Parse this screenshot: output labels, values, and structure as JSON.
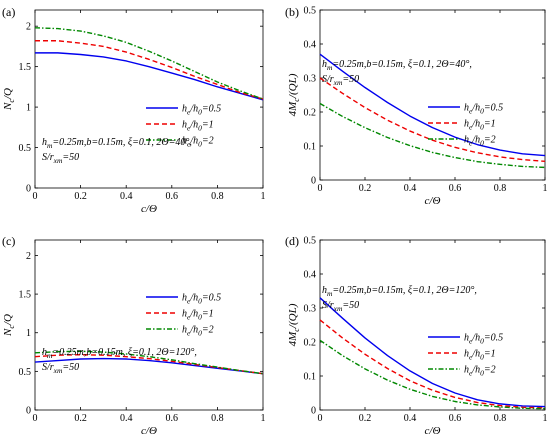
{
  "chart_data": [
    {
      "type": "line",
      "panel_label": "(a)",
      "xlabel": "c/Θ",
      "ylabel": "N_c/Q",
      "xlim": [
        0,
        1
      ],
      "ylim": [
        0,
        2.2
      ],
      "xticks": [
        0,
        0.2,
        0.4,
        0.6,
        0.8,
        1
      ],
      "xtick_labels": [
        "0",
        "0.2",
        "0.4",
        "0.6",
        "0.8",
        "1"
      ],
      "yticks": [
        0,
        0.5,
        1,
        1.5,
        2
      ],
      "ytick_labels": [
        "0",
        "0.5",
        "1",
        "1.5",
        "2"
      ],
      "annotation": [
        "h_m=0.25m,b=0.15m, ξ=0.1, 2Θ=40°,",
        "S/r_xm=50"
      ],
      "x": [
        0,
        0.1,
        0.2,
        0.3,
        0.4,
        0.5,
        0.6,
        0.7,
        0.8,
        0.9,
        1.0
      ],
      "series": [
        {
          "name": "h_e/h_0=0.5",
          "color": "#0000ee",
          "dash": "solid",
          "values": [
            1.67,
            1.67,
            1.65,
            1.62,
            1.57,
            1.5,
            1.42,
            1.34,
            1.25,
            1.17,
            1.09
          ]
        },
        {
          "name": "h_e/h_0=1",
          "color": "#ee0000",
          "dash": "dashed",
          "values": [
            1.82,
            1.82,
            1.79,
            1.75,
            1.68,
            1.59,
            1.49,
            1.38,
            1.28,
            1.18,
            1.1
          ]
        },
        {
          "name": "h_e/h_0=2",
          "color": "#008800",
          "dash": "dashdot",
          "values": [
            1.98,
            1.97,
            1.94,
            1.88,
            1.8,
            1.69,
            1.57,
            1.44,
            1.31,
            1.2,
            1.1
          ]
        }
      ]
    },
    {
      "type": "line",
      "panel_label": "(b)",
      "xlabel": "c/Θ",
      "ylabel": "4M_c/(QL)",
      "xlim": [
        0,
        1
      ],
      "ylim": [
        0,
        0.5
      ],
      "xticks": [
        0,
        0.2,
        0.4,
        0.6,
        0.8,
        1
      ],
      "xtick_labels": [
        "0",
        "0.2",
        "0.4",
        "0.6",
        "0.8",
        "1"
      ],
      "yticks": [
        0,
        0.1,
        0.2,
        0.3,
        0.4,
        0.5
      ],
      "ytick_labels": [
        "0",
        "0.1",
        "0.2",
        "0.3",
        "0.4",
        "0.5"
      ],
      "annotation": [
        "h_m=0.25m,b=0.15m, ξ=0.1, 2Θ=40°,",
        "S/r_xm=50"
      ],
      "x": [
        0,
        0.1,
        0.2,
        0.3,
        0.4,
        0.5,
        0.6,
        0.7,
        0.8,
        0.9,
        1.0
      ],
      "series": [
        {
          "name": "h_e/h_0=0.5",
          "color": "#0000ee",
          "dash": "solid",
          "values": [
            0.37,
            0.32,
            0.272,
            0.228,
            0.188,
            0.154,
            0.126,
            0.104,
            0.088,
            0.077,
            0.072
          ]
        },
        {
          "name": "h_e/h_0=1",
          "color": "#ee0000",
          "dash": "dashed",
          "values": [
            0.3,
            0.255,
            0.213,
            0.176,
            0.144,
            0.117,
            0.096,
            0.08,
            0.068,
            0.06,
            0.055
          ]
        },
        {
          "name": "h_e/h_0=2",
          "color": "#008800",
          "dash": "dashdot",
          "values": [
            0.225,
            0.187,
            0.154,
            0.125,
            0.101,
            0.081,
            0.066,
            0.054,
            0.046,
            0.04,
            0.037
          ]
        }
      ]
    },
    {
      "type": "line",
      "panel_label": "(c)",
      "xlabel": "c/Θ",
      "ylabel": "N_c/Q",
      "xlim": [
        0,
        1
      ],
      "ylim": [
        0,
        2.2
      ],
      "xticks": [
        0,
        0.2,
        0.4,
        0.6,
        0.8,
        1
      ],
      "xtick_labels": [
        "0",
        "0.2",
        "0.4",
        "0.6",
        "0.8",
        "1"
      ],
      "yticks": [
        0,
        0.5,
        1,
        1.5,
        2
      ],
      "ytick_labels": [
        "0",
        "0.5",
        "1",
        "1.5",
        "2"
      ],
      "annotation": [
        "h_m=0.25m,b=0.15m, ξ=0.1, 2Θ=120°,",
        "S/r_xm=50"
      ],
      "x": [
        0,
        0.1,
        0.2,
        0.3,
        0.4,
        0.5,
        0.6,
        0.7,
        0.8,
        0.9,
        1.0
      ],
      "series": [
        {
          "name": "h_e/h_0=0.5",
          "color": "#0000ee",
          "dash": "solid",
          "values": [
            0.62,
            0.64,
            0.66,
            0.665,
            0.66,
            0.64,
            0.61,
            0.575,
            0.54,
            0.505,
            0.47
          ]
        },
        {
          "name": "h_e/h_0=1",
          "color": "#ee0000",
          "dash": "dashed",
          "values": [
            0.69,
            0.71,
            0.715,
            0.71,
            0.69,
            0.665,
            0.63,
            0.59,
            0.55,
            0.51,
            0.47
          ]
        },
        {
          "name": "h_e/h_0=2",
          "color": "#008800",
          "dash": "dashdot",
          "values": [
            0.74,
            0.755,
            0.76,
            0.75,
            0.725,
            0.69,
            0.65,
            0.6,
            0.555,
            0.51,
            0.47
          ]
        }
      ]
    },
    {
      "type": "line",
      "panel_label": "(d)",
      "xlabel": "c/Θ",
      "ylabel": "4M_c/(QL)",
      "xlim": [
        0,
        1
      ],
      "ylim": [
        0,
        0.5
      ],
      "xticks": [
        0,
        0.2,
        0.4,
        0.6,
        0.8,
        1
      ],
      "xtick_labels": [
        "0",
        "0.2",
        "0.4",
        "0.6",
        "0.8",
        "1"
      ],
      "yticks": [
        0,
        0.1,
        0.2,
        0.3,
        0.4,
        0.5
      ],
      "ytick_labels": [
        "0",
        "0.1",
        "0.2",
        "0.3",
        "0.4",
        "0.5"
      ],
      "annotation": [
        "h_m=0.25m,b=0.15m, ξ=0.1, 2Θ=120°,",
        "S/r_xm=50"
      ],
      "x": [
        0,
        0.1,
        0.2,
        0.3,
        0.4,
        0.5,
        0.6,
        0.7,
        0.8,
        0.9,
        1.0
      ],
      "series": [
        {
          "name": "h_e/h_0=0.5",
          "color": "#0000ee",
          "dash": "solid",
          "values": [
            0.33,
            0.27,
            0.212,
            0.16,
            0.115,
            0.078,
            0.05,
            0.03,
            0.018,
            0.012,
            0.01
          ]
        },
        {
          "name": "h_e/h_0=1",
          "color": "#ee0000",
          "dash": "dashed",
          "values": [
            0.265,
            0.212,
            0.164,
            0.122,
            0.086,
            0.058,
            0.037,
            0.022,
            0.013,
            0.008,
            0.006
          ]
        },
        {
          "name": "h_e/h_0=2",
          "color": "#008800",
          "dash": "dashdot",
          "values": [
            0.205,
            0.16,
            0.121,
            0.088,
            0.061,
            0.04,
            0.025,
            0.015,
            0.009,
            0.005,
            0.004
          ]
        }
      ]
    }
  ]
}
